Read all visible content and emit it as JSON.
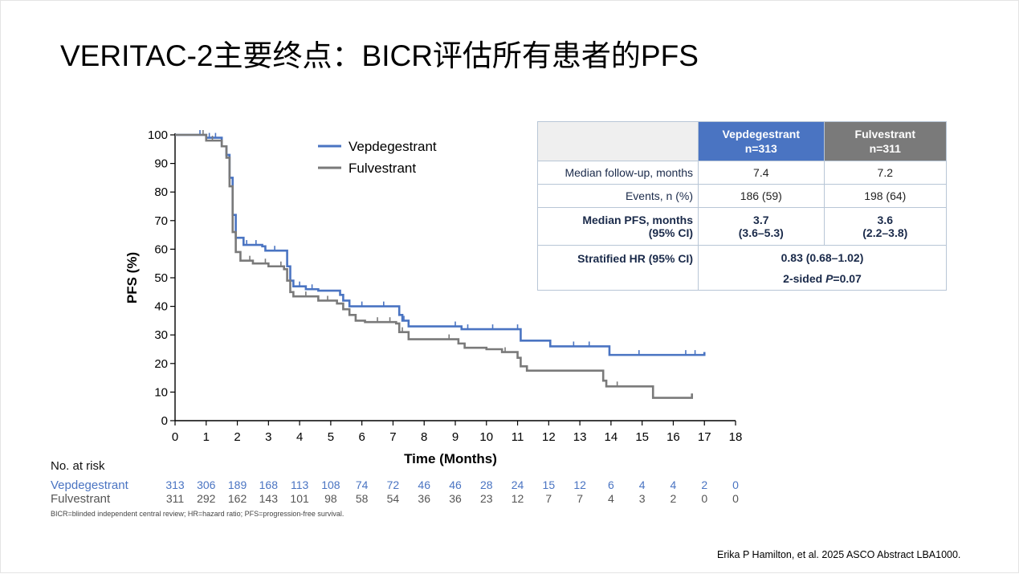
{
  "slide": {
    "title": "VERITAC-2主要终点：BICR评估所有患者的PFS",
    "abbreviations": "BICR=blinded independent central review; HR=hazard ratio; PFS=progression-free survival.",
    "citation": "Erika P Hamilton, et al. 2025 ASCO Abstract LBA1000."
  },
  "colors": {
    "vepdegestrant": "#4a74c2",
    "fulvestrant": "#7a7a7a",
    "table_border": "#b8c6d6"
  },
  "chart_data": {
    "type": "line",
    "subtype": "kaplan-meier step",
    "xlabel": "Time (Months)",
    "ylabel": "PFS (%)",
    "xlim": [
      0,
      18
    ],
    "ylim": [
      0,
      100
    ],
    "x_ticks": [
      0,
      1,
      2,
      3,
      4,
      5,
      6,
      7,
      8,
      9,
      10,
      11,
      12,
      13,
      14,
      15,
      16,
      17,
      18
    ],
    "y_ticks": [
      0,
      10,
      20,
      30,
      40,
      50,
      60,
      70,
      80,
      90,
      100
    ],
    "grid": false,
    "legend_position": "top-center",
    "series": [
      {
        "name": "Vepdegestrant",
        "color": "#4a74c2",
        "points": [
          [
            0,
            100
          ],
          [
            1,
            99
          ],
          [
            1.5,
            96
          ],
          [
            1.65,
            93
          ],
          [
            1.75,
            85
          ],
          [
            1.85,
            72
          ],
          [
            1.95,
            64
          ],
          [
            2.2,
            61.5
          ],
          [
            2.8,
            61
          ],
          [
            2.9,
            59.5
          ],
          [
            3.5,
            59.5
          ],
          [
            3.6,
            54
          ],
          [
            3.7,
            49
          ],
          [
            3.8,
            47
          ],
          [
            4.2,
            46
          ],
          [
            4.6,
            45.5
          ],
          [
            5.3,
            44
          ],
          [
            5.4,
            42
          ],
          [
            5.6,
            40
          ],
          [
            7.1,
            40
          ],
          [
            7.2,
            37
          ],
          [
            7.3,
            35
          ],
          [
            7.5,
            33
          ],
          [
            8.5,
            33
          ],
          [
            9,
            33
          ],
          [
            9.2,
            32
          ],
          [
            11,
            32
          ],
          [
            11.1,
            28
          ],
          [
            12,
            28
          ],
          [
            12.05,
            26
          ],
          [
            13.9,
            26
          ],
          [
            13.95,
            23
          ],
          [
            17,
            23
          ],
          [
            17,
            24
          ]
        ],
        "censor_x": [
          0.8,
          1.1,
          1.3,
          2.3,
          2.6,
          3.2,
          4.0,
          4.4,
          5.4,
          6.0,
          6.7,
          7.35,
          9.0,
          9.4,
          10.2,
          11.0,
          12.8,
          13.3,
          14.9,
          16.4,
          16.7
        ]
      },
      {
        "name": "Fulvestrant",
        "color": "#7a7a7a",
        "points": [
          [
            0,
            100
          ],
          [
            1,
            98
          ],
          [
            1.5,
            96
          ],
          [
            1.65,
            92
          ],
          [
            1.75,
            82
          ],
          [
            1.85,
            66
          ],
          [
            1.95,
            59
          ],
          [
            2.1,
            56
          ],
          [
            2.5,
            55
          ],
          [
            3,
            54
          ],
          [
            3.5,
            53
          ],
          [
            3.6,
            49
          ],
          [
            3.7,
            45
          ],
          [
            3.8,
            43.5
          ],
          [
            4.6,
            42
          ],
          [
            5.2,
            41
          ],
          [
            5.4,
            39
          ],
          [
            5.6,
            37
          ],
          [
            5.8,
            35
          ],
          [
            6.1,
            34.5
          ],
          [
            7.1,
            34
          ],
          [
            7.2,
            31
          ],
          [
            7.5,
            28.5
          ],
          [
            9,
            28.5
          ],
          [
            9.1,
            27
          ],
          [
            9.3,
            25.5
          ],
          [
            10,
            25
          ],
          [
            10.5,
            24
          ],
          [
            11,
            22
          ],
          [
            11.1,
            19
          ],
          [
            11.3,
            17.5
          ],
          [
            13.7,
            17.5
          ],
          [
            13.75,
            14
          ],
          [
            13.85,
            12
          ],
          [
            15.3,
            12
          ],
          [
            15.35,
            8
          ],
          [
            16.5,
            8
          ],
          [
            16.6,
            9.5
          ]
        ],
        "censor_x": [
          0.9,
          1.2,
          2.4,
          2.9,
          3.4,
          4.2,
          4.9,
          6.5,
          6.9,
          7.3,
          8.8,
          10.6,
          11.0,
          14.2
        ]
      }
    ],
    "risk_table": {
      "header": "No. at risk",
      "times": [
        0,
        1,
        2,
        3,
        4,
        5,
        6,
        7,
        8,
        9,
        10,
        11,
        12,
        13,
        14,
        15,
        16,
        17,
        18
      ],
      "rows": [
        {
          "label": "Vepdegestrant",
          "values": [
            "313",
            "306",
            "189",
            "168",
            "113",
            "108",
            "74",
            "72",
            "46",
            "46",
            "28",
            "24",
            "15",
            "12",
            "6",
            "4",
            "4",
            "2",
            "0"
          ]
        },
        {
          "label": "Fulvestrant",
          "values": [
            "311",
            "292",
            "162",
            "143",
            "101",
            "98",
            "58",
            "54",
            "36",
            "36",
            "23",
            "12",
            "7",
            "7",
            "4",
            "3",
            "2",
            "0",
            "0"
          ]
        }
      ]
    }
  },
  "stats_table": {
    "headers": {
      "vep_name": "Vepdegestrant",
      "vep_n": "n=313",
      "ful_name": "Fulvestrant",
      "ful_n": "n=311"
    },
    "rows": {
      "followup": {
        "label": "Median follow-up, months",
        "vep": "7.4",
        "ful": "7.2"
      },
      "events": {
        "label": "Events, n (%)",
        "vep": "186 (59)",
        "ful": "198 (64)"
      },
      "pfs": {
        "label1": "Median PFS, months",
        "label2": "(95% CI)",
        "vep1": "3.7",
        "vep2": "(3.6–5.3)",
        "ful1": "3.6",
        "ful2": "(2.2–3.8)"
      },
      "hr": {
        "label": "Stratified HR (95% CI)",
        "value": "0.83 (0.68–1.02)",
        "p_prefix": "2-sided ",
        "p_symbol": "P",
        "p_value": "=0.07"
      }
    }
  }
}
